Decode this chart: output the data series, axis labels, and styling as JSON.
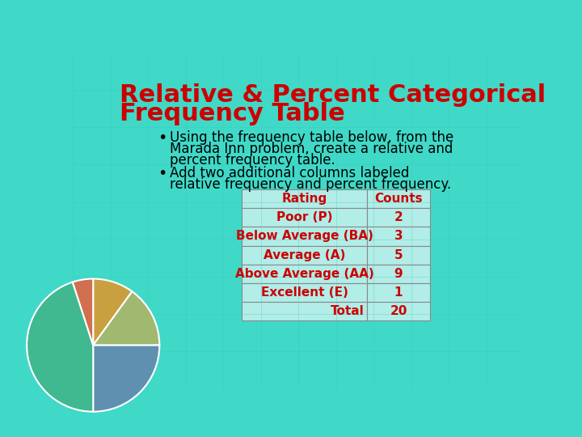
{
  "title_line1": "Relative & Percent Categorical",
  "title_line2": "Frequency Table",
  "title_color": "#CC0000",
  "bg_color": "#40D9C8",
  "bullet1_line1": "Using the frequency table below, from the",
  "bullet1_line2": "Marada Inn problem, create a relative and",
  "bullet1_line3": "percent frequency table.",
  "bullet2_line1": "Add two additional columns labeled",
  "bullet2_line2": "relative frequency and percent frequency.",
  "table_header": [
    "Rating",
    "Counts"
  ],
  "table_rows": [
    [
      "Poor (P)",
      "2"
    ],
    [
      "Below Average (BA)",
      "3"
    ],
    [
      "Average (A)",
      "5"
    ],
    [
      "Above Average (AA)",
      "9"
    ],
    [
      "Excellent (E)",
      "1"
    ],
    [
      "Total",
      "20"
    ]
  ],
  "table_header_color": "#CC0000",
  "table_row_color": "#CC0000",
  "table_bg": "#B2EDE8",
  "table_border_color": "#888888",
  "pie_colors": [
    "#C8A040",
    "#A0B870",
    "#6090B0",
    "#40B890",
    "#D07050"
  ],
  "pie_values": [
    2,
    3,
    5,
    9,
    1
  ]
}
